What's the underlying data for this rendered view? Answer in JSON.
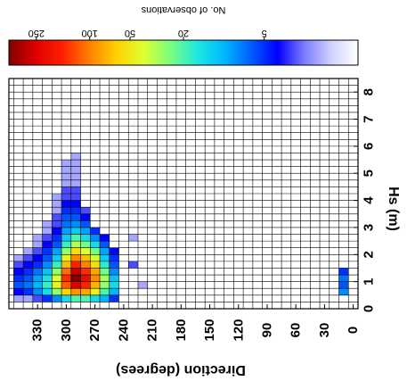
{
  "chart_data": {
    "type": "heatmap",
    "orientation": "rotated 180 degrees",
    "title": "",
    "xlabel": "Hs (m)",
    "ylabel": "Direction (degrees)",
    "x_ticks": [
      "0",
      "1",
      "2",
      "3",
      "4",
      "5",
      "6",
      "7",
      "8"
    ],
    "y_ticks": [
      "0",
      "30",
      "60",
      "90",
      "120",
      "150",
      "180",
      "210",
      "240",
      "270",
      "300",
      "330"
    ],
    "xlim": [
      0,
      8.5
    ],
    "ylim": [
      -5,
      360
    ],
    "hs_bin_width": 0.25,
    "dir_bin_width": 10,
    "grid": true,
    "colorbar": {
      "label": "No. of observations",
      "ticks": [
        "5",
        "20",
        "50",
        "100",
        "250"
      ],
      "scale": "log",
      "range": [
        1,
        400
      ],
      "colormap": [
        "#ffffff",
        "#d0d2ff",
        "#7b7bff",
        "#0000ff",
        "#0060ff",
        "#00b8ff",
        "#20e8e0",
        "#7cff7c",
        "#e0ff30",
        "#ffd000",
        "#ff8000",
        "#ff2000",
        "#e00000",
        "#800000"
      ]
    },
    "cells_note": "each entry: [direction_bin_center_deg, hs_bin_center_m, count]",
    "cells": [
      [
        10,
        0.625,
        8
      ],
      [
        10,
        0.875,
        6
      ],
      [
        10,
        1.125,
        7
      ],
      [
        10,
        1.375,
        5
      ],
      [
        250,
        0.375,
        5
      ],
      [
        250,
        0.625,
        10
      ],
      [
        250,
        0.875,
        14
      ],
      [
        250,
        1.125,
        11
      ],
      [
        250,
        1.375,
        8
      ],
      [
        250,
        1.625,
        6
      ],
      [
        250,
        1.875,
        5
      ],
      [
        250,
        2.125,
        4
      ],
      [
        230,
        1.625,
        3
      ],
      [
        230,
        2.625,
        2
      ],
      [
        220,
        0.875,
        2
      ],
      [
        220,
        1.125,
        1
      ],
      [
        260,
        0.375,
        10
      ],
      [
        260,
        0.625,
        20
      ],
      [
        260,
        0.875,
        28
      ],
      [
        260,
        1.125,
        30
      ],
      [
        260,
        1.375,
        24
      ],
      [
        260,
        1.625,
        17
      ],
      [
        260,
        1.875,
        12
      ],
      [
        260,
        2.125,
        9
      ],
      [
        260,
        2.375,
        6
      ],
      [
        260,
        2.625,
        4
      ],
      [
        270,
        0.375,
        14
      ],
      [
        270,
        0.625,
        45
      ],
      [
        270,
        0.875,
        75
      ],
      [
        270,
        1.125,
        95
      ],
      [
        270,
        1.375,
        80
      ],
      [
        270,
        1.625,
        55
      ],
      [
        270,
        1.875,
        38
      ],
      [
        270,
        2.125,
        24
      ],
      [
        270,
        2.375,
        14
      ],
      [
        270,
        2.625,
        8
      ],
      [
        270,
        2.875,
        5
      ],
      [
        280,
        0.375,
        20
      ],
      [
        280,
        0.625,
        80
      ],
      [
        280,
        0.875,
        160
      ],
      [
        280,
        1.125,
        210
      ],
      [
        280,
        1.375,
        150
      ],
      [
        280,
        1.625,
        100
      ],
      [
        280,
        1.875,
        70
      ],
      [
        280,
        2.125,
        40
      ],
      [
        280,
        2.375,
        24
      ],
      [
        280,
        2.625,
        14
      ],
      [
        280,
        2.875,
        9
      ],
      [
        280,
        3.125,
        6
      ],
      [
        280,
        3.375,
        4
      ],
      [
        280,
        3.625,
        3
      ],
      [
        290,
        0.375,
        20
      ],
      [
        290,
        0.625,
        90
      ],
      [
        290,
        0.875,
        250
      ],
      [
        290,
        1.125,
        400
      ],
      [
        290,
        1.375,
        280
      ],
      [
        290,
        1.625,
        160
      ],
      [
        290,
        1.875,
        95
      ],
      [
        290,
        2.125,
        55
      ],
      [
        290,
        2.375,
        32
      ],
      [
        290,
        2.625,
        20
      ],
      [
        290,
        2.875,
        12
      ],
      [
        290,
        3.125,
        8
      ],
      [
        290,
        3.375,
        6
      ],
      [
        290,
        3.625,
        5
      ],
      [
        290,
        3.875,
        4
      ],
      [
        290,
        4.125,
        3
      ],
      [
        290,
        4.375,
        3
      ],
      [
        290,
        4.625,
        2
      ],
      [
        290,
        4.875,
        2
      ],
      [
        290,
        5.125,
        2
      ],
      [
        290,
        5.375,
        2
      ],
      [
        290,
        5.625,
        2
      ],
      [
        290,
        5.875,
        1
      ],
      [
        290,
        6.125,
        1
      ],
      [
        300,
        0.375,
        14
      ],
      [
        300,
        0.625,
        60
      ],
      [
        300,
        0.875,
        120
      ],
      [
        300,
        1.125,
        150
      ],
      [
        300,
        1.375,
        110
      ],
      [
        300,
        1.625,
        70
      ],
      [
        300,
        1.875,
        45
      ],
      [
        300,
        2.125,
        28
      ],
      [
        300,
        2.375,
        18
      ],
      [
        300,
        2.625,
        12
      ],
      [
        300,
        2.875,
        9
      ],
      [
        300,
        3.125,
        7
      ],
      [
        300,
        3.375,
        6
      ],
      [
        300,
        3.625,
        5
      ],
      [
        300,
        3.875,
        4
      ],
      [
        300,
        4.125,
        3
      ],
      [
        300,
        4.375,
        3
      ],
      [
        300,
        4.625,
        2
      ],
      [
        300,
        4.875,
        2
      ],
      [
        300,
        5.125,
        2
      ],
      [
        300,
        5.375,
        2
      ],
      [
        300,
        5.625,
        1
      ],
      [
        300,
        5.875,
        1
      ],
      [
        300,
        6.125,
        1
      ],
      [
        300,
        6.375,
        1
      ],
      [
        310,
        0.375,
        8
      ],
      [
        310,
        0.625,
        28
      ],
      [
        310,
        0.875,
        45
      ],
      [
        310,
        1.125,
        40
      ],
      [
        310,
        1.375,
        28
      ],
      [
        310,
        1.625,
        18
      ],
      [
        310,
        1.875,
        12
      ],
      [
        310,
        2.125,
        9
      ],
      [
        310,
        2.375,
        6
      ],
      [
        310,
        2.625,
        5
      ],
      [
        310,
        2.875,
        4
      ],
      [
        310,
        3.125,
        3
      ],
      [
        310,
        3.375,
        3
      ],
      [
        310,
        3.625,
        2
      ],
      [
        310,
        3.875,
        2
      ],
      [
        310,
        4.125,
        2
      ],
      [
        310,
        4.375,
        1
      ],
      [
        310,
        4.625,
        1
      ],
      [
        320,
        0.375,
        5
      ],
      [
        320,
        0.625,
        14
      ],
      [
        320,
        0.875,
        18
      ],
      [
        320,
        1.125,
        15
      ],
      [
        320,
        1.375,
        11
      ],
      [
        320,
        1.625,
        8
      ],
      [
        320,
        1.875,
        6
      ],
      [
        320,
        2.125,
        5
      ],
      [
        320,
        2.375,
        4
      ],
      [
        320,
        2.625,
        3
      ],
      [
        320,
        2.875,
        2
      ],
      [
        320,
        3.125,
        2
      ],
      [
        320,
        3.375,
        1
      ],
      [
        330,
        0.375,
        3
      ],
      [
        330,
        0.625,
        8
      ],
      [
        330,
        0.875,
        10
      ],
      [
        330,
        1.125,
        9
      ],
      [
        330,
        1.375,
        7
      ],
      [
        330,
        1.625,
        5
      ],
      [
        330,
        1.875,
        4
      ],
      [
        330,
        2.125,
        3
      ],
      [
        330,
        2.375,
        2
      ],
      [
        330,
        2.625,
        2
      ],
      [
        340,
        0.375,
        2
      ],
      [
        340,
        0.625,
        5
      ],
      [
        340,
        0.875,
        7
      ],
      [
        340,
        1.125,
        6
      ],
      [
        340,
        1.375,
        5
      ],
      [
        340,
        1.625,
        4
      ],
      [
        340,
        1.875,
        3
      ],
      [
        340,
        2.125,
        2
      ],
      [
        350,
        0.375,
        2
      ],
      [
        350,
        0.625,
        4
      ],
      [
        350,
        0.875,
        6
      ],
      [
        350,
        1.125,
        5
      ],
      [
        350,
        1.375,
        4
      ],
      [
        350,
        1.625,
        3
      ],
      [
        350,
        1.875,
        2
      ]
    ]
  }
}
